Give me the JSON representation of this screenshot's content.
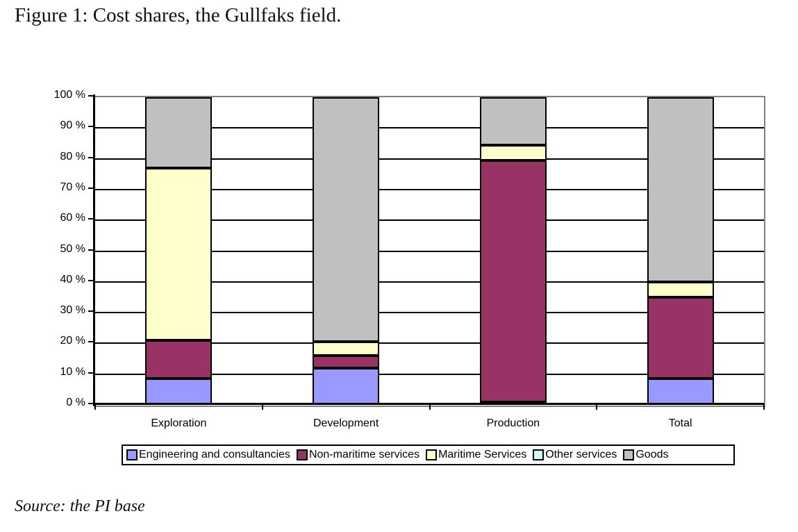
{
  "figure": {
    "title": "Figure 1: Cost shares, the Gullfaks field.",
    "source": "Source: the PI base"
  },
  "chart_data": {
    "type": "bar",
    "stacked": true,
    "unit": "%",
    "title": "Figure 1: Cost shares, the Gullfaks field.",
    "xlabel": "",
    "ylabel": "",
    "ylim": [
      0,
      100
    ],
    "grid": true,
    "legend_position": "bottom",
    "categories": [
      "Exploration",
      "Development",
      "Production",
      "Total"
    ],
    "series": [
      {
        "name": "Engineering and consultancies",
        "color": "#9999FF",
        "values": [
          8.5,
          12,
          1,
          8.5
        ]
      },
      {
        "name": "Non-maritime services",
        "color": "#993366",
        "values": [
          12.5,
          4,
          78.5,
          26.5
        ]
      },
      {
        "name": "Maritime Services",
        "color": "#FFFFCC",
        "values": [
          56,
          4.5,
          5,
          5
        ]
      },
      {
        "name": "Other services",
        "color": "#CCFFFF",
        "values": [
          0,
          0,
          0,
          0
        ]
      },
      {
        "name": "Goods",
        "color": "#C0C0C0",
        "values": [
          23,
          79.5,
          15.5,
          60
        ]
      }
    ],
    "ytick_labels": [
      "0 %",
      "10 %",
      "20 %",
      "30 %",
      "40 %",
      "50 %",
      "60 %",
      "70 %",
      "80 %",
      "90 %",
      "100 %"
    ]
  }
}
